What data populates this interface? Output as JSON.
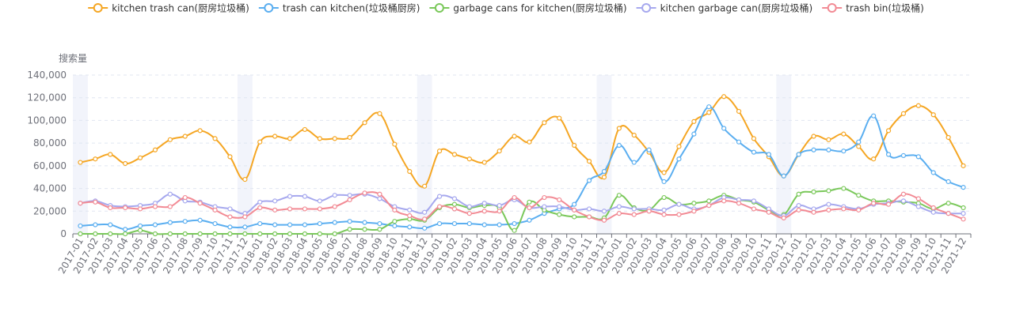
{
  "chart_data": {
    "type": "line",
    "smooth": true,
    "ylabel": "搜索量",
    "ylim": [
      0,
      140000
    ],
    "yticks": [
      0,
      20000,
      40000,
      60000,
      80000,
      100000,
      120000,
      140000
    ],
    "ytick_labels": [
      "0",
      "20,000",
      "40,000",
      "60,000",
      "80,000",
      "100,000",
      "120,000",
      "140,000"
    ],
    "grid": "horizontal-dashed",
    "legend_position": "top-center",
    "highlight_months": [
      "2017-01",
      "2017-12",
      "2018-12",
      "2019-12",
      "2020-12"
    ],
    "highlight_color": "#f2f4fb",
    "categories": [
      "2017-01",
      "2017-02",
      "2017-03",
      "2017-04",
      "2017-05",
      "2017-06",
      "2017-07",
      "2017-08",
      "2017-09",
      "2017-10",
      "2017-11",
      "2017-12",
      "2018-01",
      "2018-02",
      "2018-03",
      "2018-04",
      "2018-05",
      "2018-06",
      "2018-07",
      "2018-08",
      "2018-09",
      "2018-10",
      "2018-11",
      "2018-12",
      "2019-01",
      "2019-02",
      "2019-03",
      "2019-04",
      "2019-05",
      "2019-06",
      "2019-07",
      "2019-08",
      "2019-09",
      "2019-10",
      "2019-11",
      "2019-12",
      "2020-01",
      "2020-02",
      "2020-03",
      "2020-04",
      "2020-05",
      "2020-06",
      "2020-07",
      "2020-08",
      "2020-09",
      "2020-10",
      "2020-11",
      "2020-12",
      "2021-01",
      "2021-02",
      "2021-03",
      "2021-04",
      "2021-05",
      "2021-06",
      "2021-07",
      "2021-08",
      "2021-09",
      "2021-10",
      "2021-11",
      "2021-12"
    ],
    "series": [
      {
        "name": "kitchen trash can(厨房垃圾桶)",
        "color": "#f5a623",
        "values": [
          63000,
          66000,
          70000,
          62000,
          67000,
          74000,
          83000,
          86000,
          91000,
          84000,
          68000,
          48000,
          81000,
          86000,
          84000,
          92000,
          84000,
          84000,
          85000,
          98000,
          106000,
          79000,
          55000,
          42000,
          73000,
          70000,
          66000,
          63000,
          73000,
          86000,
          81000,
          98000,
          102000,
          78000,
          64000,
          50000,
          93000,
          87000,
          72000,
          54000,
          77000,
          99000,
          107000,
          121000,
          108000,
          84000,
          68000,
          51000,
          70000,
          86000,
          83000,
          88000,
          77000,
          66000,
          91000,
          106000,
          113000,
          105000,
          85000,
          60000
        ]
      },
      {
        "name": "trash can kitchen(垃圾桶厨房)",
        "color": "#5aaef0",
        "values": [
          7000,
          8000,
          8000,
          4000,
          7000,
          8000,
          10000,
          11000,
          12000,
          9000,
          6000,
          6000,
          9000,
          8000,
          8000,
          8000,
          9000,
          10000,
          11000,
          10000,
          9000,
          7000,
          6000,
          5000,
          9000,
          9000,
          9000,
          8000,
          8000,
          9000,
          12000,
          18000,
          22000,
          26000,
          47000,
          55000,
          78000,
          63000,
          74000,
          46000,
          66000,
          88000,
          112000,
          93000,
          81000,
          72000,
          70000,
          51000,
          70000,
          74000,
          74000,
          73000,
          81000,
          104000,
          70000,
          69000,
          68000,
          54000,
          46000,
          41000
        ]
      },
      {
        "name": "garbage cans for kitchen(厨房垃圾桶)",
        "color": "#7ac85a",
        "values": [
          0,
          0,
          0,
          0,
          3000,
          0,
          0,
          0,
          0,
          0,
          0,
          0,
          0,
          0,
          0,
          0,
          0,
          0,
          4000,
          4000,
          4000,
          11000,
          13000,
          12000,
          23000,
          26000,
          23000,
          25000,
          23000,
          3000,
          28000,
          21000,
          17000,
          15000,
          15000,
          14000,
          34000,
          23000,
          21000,
          32000,
          26000,
          27000,
          29000,
          34000,
          30000,
          28000,
          21000,
          17000,
          35000,
          37000,
          38000,
          40000,
          34000,
          29000,
          29000,
          28000,
          27000,
          22000,
          27000,
          23000
        ]
      },
      {
        "name": "kitchen garbage can(厨房垃圾桶)",
        "color": "#a6a8ee",
        "values": [
          27000,
          29000,
          25000,
          24000,
          25000,
          27000,
          35000,
          29000,
          28000,
          24000,
          22000,
          18000,
          28000,
          29000,
          33000,
          33000,
          29000,
          34000,
          34000,
          35000,
          31000,
          24000,
          21000,
          19000,
          33000,
          31000,
          24000,
          27000,
          25000,
          30000,
          23000,
          24000,
          24000,
          21000,
          22000,
          20000,
          24000,
          22000,
          22000,
          21000,
          26000,
          22000,
          25000,
          32000,
          30000,
          29000,
          22000,
          16000,
          25000,
          22000,
          26000,
          24000,
          22000,
          26000,
          27000,
          29000,
          24000,
          19000,
          18000,
          18000
        ]
      },
      {
        "name": "trash bin(垃圾桶)",
        "color": "#f28a94",
        "values": [
          27000,
          28000,
          23000,
          23000,
          22000,
          24000,
          24000,
          32000,
          27000,
          21000,
          15000,
          15000,
          23000,
          21000,
          22000,
          22000,
          22000,
          24000,
          30000,
          36000,
          35000,
          21000,
          16000,
          13000,
          24000,
          22000,
          18000,
          20000,
          20000,
          32000,
          23000,
          32000,
          30000,
          21000,
          15000,
          12000,
          18000,
          17000,
          20000,
          17000,
          17000,
          20000,
          25000,
          29000,
          27000,
          22000,
          19000,
          14000,
          21000,
          19000,
          21000,
          22000,
          21000,
          27000,
          26000,
          35000,
          31000,
          23000,
          18000,
          13000
        ]
      }
    ]
  }
}
